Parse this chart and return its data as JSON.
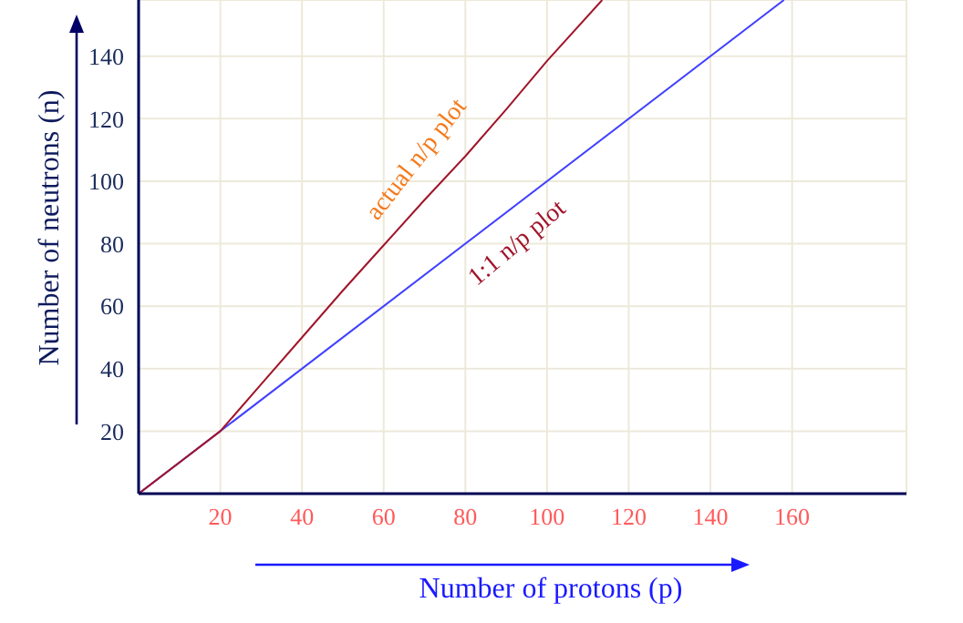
{
  "chart_data": {
    "type": "line",
    "xlabel": "Number of protons (p)",
    "ylabel": "Number of neutrons (n)",
    "series": [
      {
        "color": "#4040ff",
        "x": [
          0,
          158
        ],
        "values": [
          0,
          158
        ]
      },
      {
        "color": "#a0152a",
        "x": [
          0,
          10,
          20,
          30,
          40,
          50,
          60,
          70,
          80,
          90,
          100,
          113.5
        ],
        "values": [
          0,
          10,
          20,
          35,
          50,
          65,
          79.5,
          94,
          108,
          123,
          138.5,
          158
        ]
      }
    ],
    "annotations": [
      "actual n/p plot",
      "1:1 n/p plot"
    ],
    "xlim": [
      0,
      188
    ],
    "ylim": [
      0,
      158
    ],
    "xticks": [
      20,
      40,
      60,
      80,
      100,
      120,
      140,
      160
    ],
    "yticks": [
      20,
      40,
      60,
      80,
      100,
      120,
      140
    ],
    "grid": true
  }
}
